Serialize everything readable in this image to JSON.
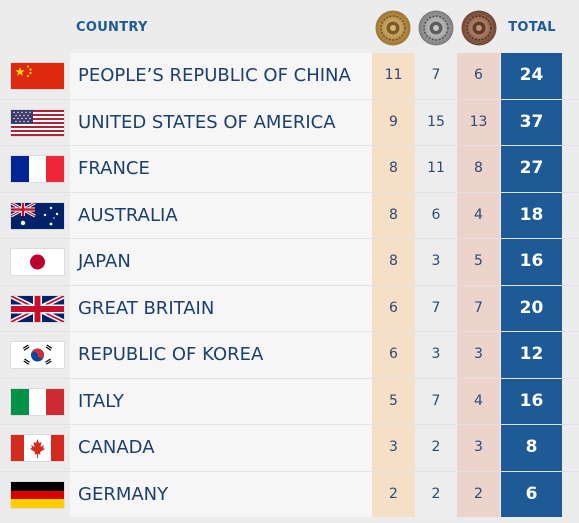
{
  "header": {
    "country_label": "COUNTRY",
    "total_label": "TOTAL",
    "medal_icons": [
      "gold-medal-icon",
      "silver-medal-icon",
      "bronze-medal-icon"
    ]
  },
  "colors": {
    "accent": "#1d5a96",
    "gold_column": "#f5dfc7",
    "silver_column": "#ededed",
    "bronze_column": "#ecd3cc"
  },
  "rows": [
    {
      "country": "PEOPLE’S REPUBLIC OF CHINA",
      "flag": "china-flag-icon",
      "gold": "11",
      "silver": "7",
      "bronze": "6",
      "total": "24"
    },
    {
      "country": "UNITED STATES OF AMERICA",
      "flag": "usa-flag-icon",
      "gold": "9",
      "silver": "15",
      "bronze": "13",
      "total": "37"
    },
    {
      "country": "FRANCE",
      "flag": "france-flag-icon",
      "gold": "8",
      "silver": "11",
      "bronze": "8",
      "total": "27"
    },
    {
      "country": "AUSTRALIA",
      "flag": "australia-flag-icon",
      "gold": "8",
      "silver": "6",
      "bronze": "4",
      "total": "18"
    },
    {
      "country": "JAPAN",
      "flag": "japan-flag-icon",
      "gold": "8",
      "silver": "3",
      "bronze": "5",
      "total": "16"
    },
    {
      "country": "GREAT BRITAIN",
      "flag": "great-britain-flag-icon",
      "gold": "6",
      "silver": "7",
      "bronze": "7",
      "total": "20"
    },
    {
      "country": "REPUBLIC OF KOREA",
      "flag": "korea-flag-icon",
      "gold": "6",
      "silver": "3",
      "bronze": "3",
      "total": "12"
    },
    {
      "country": "ITALY",
      "flag": "italy-flag-icon",
      "gold": "5",
      "silver": "7",
      "bronze": "4",
      "total": "16"
    },
    {
      "country": "CANADA",
      "flag": "canada-flag-icon",
      "gold": "3",
      "silver": "2",
      "bronze": "3",
      "total": "8"
    },
    {
      "country": "GERMANY",
      "flag": "germany-flag-icon",
      "gold": "2",
      "silver": "2",
      "bronze": "2",
      "total": "6"
    }
  ]
}
